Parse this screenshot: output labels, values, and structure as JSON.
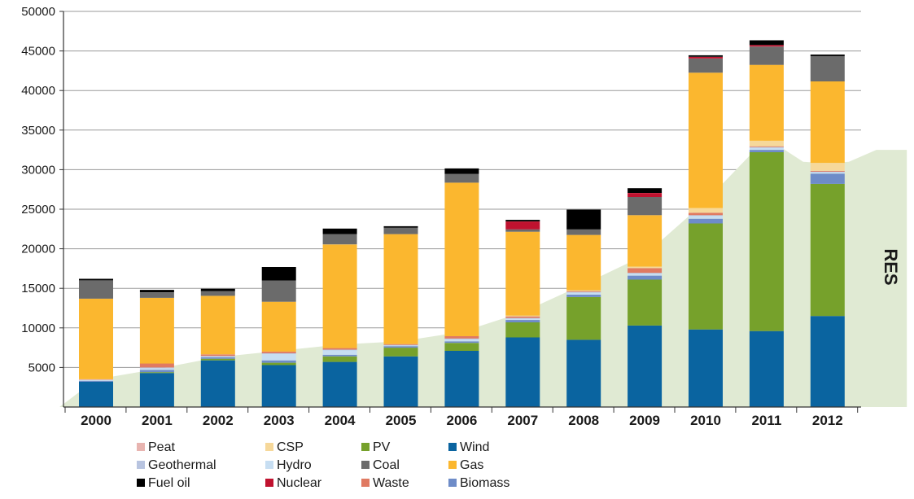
{
  "chart_data": {
    "type": "bar",
    "stacked": true,
    "title": "",
    "xlabel": "",
    "ylabel": "",
    "ylim": [
      0,
      50000
    ],
    "yticks": [
      5000,
      10000,
      15000,
      20000,
      25000,
      30000,
      35000,
      40000,
      45000,
      50000
    ],
    "categories": [
      "2000",
      "2001",
      "2002",
      "2003",
      "2004",
      "2005",
      "2006",
      "2007",
      "2008",
      "2009",
      "2010",
      "2011",
      "2012"
    ],
    "series": [
      {
        "name": "Wind",
        "color": "#0a64a0",
        "values": [
          3200,
          4300,
          5900,
          5300,
          5700,
          6400,
          7100,
          8800,
          8500,
          10300,
          9800,
          9600,
          11500
        ]
      },
      {
        "name": "PV",
        "color": "#76a12b",
        "values": [
          0,
          100,
          200,
          300,
          700,
          1100,
          1000,
          1900,
          5400,
          5800,
          13400,
          22600,
          16700
        ]
      },
      {
        "name": "Biomass",
        "color": "#6e8cc8",
        "values": [
          100,
          300,
          200,
          300,
          200,
          200,
          200,
          300,
          300,
          500,
          600,
          300,
          1300
        ]
      },
      {
        "name": "Hydro",
        "color": "#c7def2",
        "values": [
          100,
          200,
          100,
          800,
          600,
          100,
          300,
          200,
          300,
          300,
          400,
          300,
          200
        ]
      },
      {
        "name": "Geothermal",
        "color": "#b8c4e0",
        "values": [
          50,
          100,
          50,
          100,
          50,
          50,
          50,
          50,
          50,
          50,
          50,
          50,
          50
        ]
      },
      {
        "name": "Waste",
        "color": "#e07a62",
        "values": [
          0,
          500,
          200,
          200,
          200,
          100,
          300,
          200,
          100,
          600,
          300,
          100,
          100
        ]
      },
      {
        "name": "Peat",
        "color": "#e8b4b0",
        "values": [
          50,
          0,
          0,
          0,
          0,
          0,
          0,
          0,
          0,
          0,
          0,
          0,
          0
        ]
      },
      {
        "name": "CSP",
        "color": "#f6d89a",
        "values": [
          0,
          0,
          0,
          0,
          0,
          0,
          0,
          100,
          100,
          200,
          600,
          700,
          1000
        ]
      },
      {
        "name": "Gas",
        "color": "#fbb72f",
        "values": [
          10200,
          8300,
          7400,
          6300,
          13100,
          13900,
          19400,
          10600,
          7000,
          6500,
          17100,
          9600,
          10300
        ]
      },
      {
        "name": "Coal",
        "color": "#6b6b6b",
        "values": [
          2300,
          700,
          600,
          2700,
          1300,
          800,
          1100,
          300,
          700,
          2300,
          1800,
          2300,
          3200
        ]
      },
      {
        "name": "Nuclear",
        "color": "#c0122f",
        "values": [
          0,
          0,
          0,
          0,
          0,
          0,
          0,
          1000,
          0,
          500,
          200,
          200,
          0
        ]
      },
      {
        "name": "Fuel oil",
        "color": "#000000",
        "values": [
          200,
          300,
          300,
          1700,
          700,
          200,
          700,
          200,
          2500,
          600,
          200,
          600,
          200
        ]
      }
    ],
    "area": {
      "name": "RES",
      "color": "#e0ead3",
      "x_index": [
        -0.6,
        0,
        1,
        2,
        3,
        4,
        5,
        6,
        7,
        8,
        9,
        10,
        11,
        11.6,
        12,
        12.35,
        12.8,
        13.3
      ],
      "values": [
        0,
        3500,
        4800,
        6300,
        7100,
        7900,
        8300,
        9500,
        12000,
        15500,
        19200,
        26000,
        34000,
        31000,
        30800,
        31000,
        32500,
        32500
      ]
    },
    "area_label": "RES",
    "legend": {
      "position": "bottom",
      "entries": [
        "Peat",
        "Geothermal",
        "Fuel oil",
        "CSP",
        "Hydro",
        "Nuclear",
        "PV",
        "Coal",
        "Waste",
        "Wind",
        "Gas",
        "Biomass"
      ]
    }
  }
}
